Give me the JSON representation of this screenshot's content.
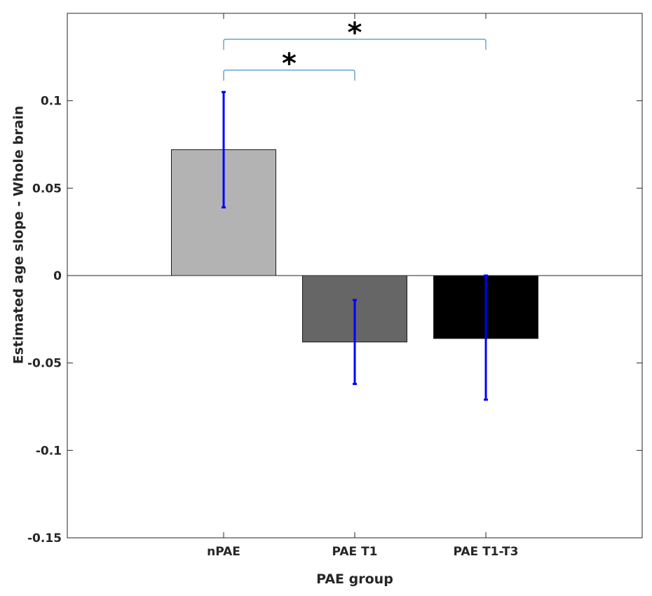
{
  "chart_data": {
    "type": "bar",
    "title": "",
    "xlabel": "PAE group",
    "ylabel": "Estimated age slope - Whole brain",
    "categories": [
      "nPAE",
      "PAE T1",
      "PAE T1-T3"
    ],
    "values": [
      0.072,
      -0.038,
      -0.036
    ],
    "error_low": [
      0.039,
      -0.062,
      -0.071
    ],
    "error_high": [
      0.105,
      -0.014,
      0.0
    ],
    "bar_colors": [
      "#b3b3b3",
      "#666666",
      "#000000"
    ],
    "error_color": "#0000ff",
    "bracket_color": "#4a90c2",
    "ylim": [
      -0.15,
      0.15
    ],
    "yticks": [
      0.1,
      0.05,
      0,
      -0.05,
      -0.1,
      -0.15
    ],
    "ytick_labels": [
      "0.1",
      "0.05",
      "0",
      "-0.05",
      "-0.1",
      "-0.15"
    ],
    "zero_line": true,
    "grid": false,
    "significance": [
      {
        "from": "nPAE",
        "to": "PAE T1",
        "label": "*"
      },
      {
        "from": "nPAE",
        "to": "PAE T1-T3",
        "label": "*"
      }
    ]
  }
}
